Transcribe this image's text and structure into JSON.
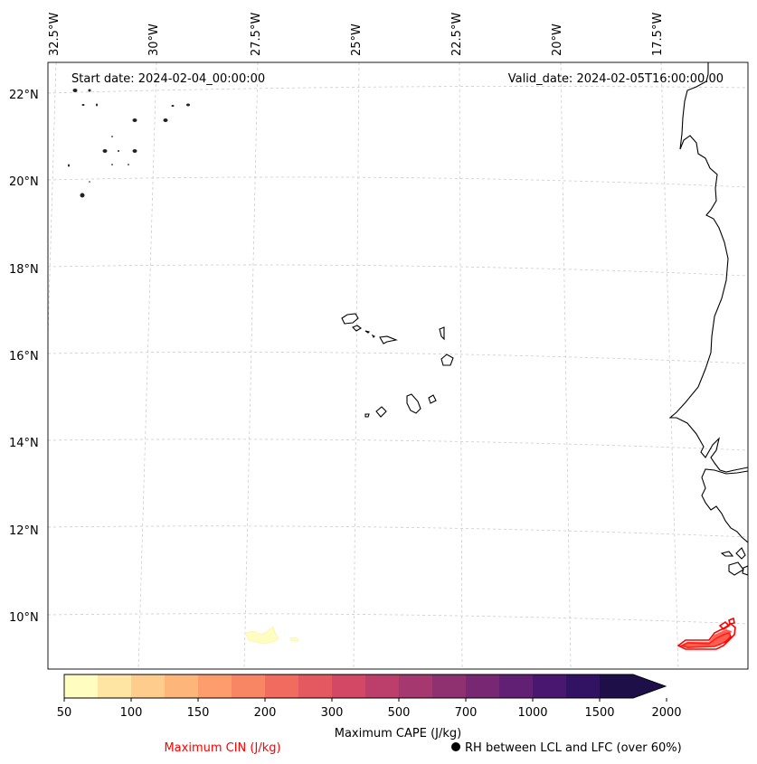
{
  "map": {
    "start_date_label": "Start date: 2024-02-04_00:00:00",
    "valid_date_label": "Valid_date: 2024-02-05T16:00:00.00",
    "lon_labels": [
      "32.5°W",
      "30°W",
      "27.5°W",
      "25°W",
      "22.5°W",
      "20°W",
      "17.5°W"
    ],
    "lat_labels": [
      "22°N",
      "20°N",
      "18°N",
      "16°N",
      "14°N",
      "12°N",
      "10°N"
    ]
  },
  "colorbar": {
    "label": "Maximum CAPE (J/kg)",
    "tick_labels": [
      "50",
      "100",
      "150",
      "200",
      "300",
      "500",
      "700",
      "1000",
      "1500",
      "2000"
    ],
    "colors": [
      "#fffdbf",
      "#fee5a3",
      "#fecd8d",
      "#feb57a",
      "#fd9d6d",
      "#f88563",
      "#f16c5e",
      "#e4585f",
      "#d24865",
      "#bc3f6b",
      "#a5386f",
      "#8f3071",
      "#782873",
      "#612073",
      "#4a1770",
      "#311263",
      "#1e0f49"
    ]
  },
  "legend": {
    "cin_label": "Maximum CIN (J/kg)",
    "rh_label": "RH between LCL and LFC (over 60%)",
    "cin_color": "#ff0000"
  },
  "chart_data": {
    "type": "map",
    "projection": "conic",
    "extent": {
      "lon_min": -33.0,
      "lon_max": -15.3,
      "lat_min": 9.0,
      "lat_max": 22.8
    },
    "gridlines": {
      "longitudes": [
        -32.5,
        -30,
        -27.5,
        -25,
        -22.5,
        -20,
        -17.5
      ],
      "latitudes": [
        22,
        20,
        18,
        16,
        14,
        12,
        10
      ],
      "style": "dashed"
    },
    "fields": [
      "Maximum CAPE (J/kg)",
      "Maximum CIN (J/kg)",
      "RH between LCL and LFC (over 60%)"
    ],
    "cape_levels": [
      50,
      100,
      150,
      200,
      300,
      500,
      700,
      1000,
      1500,
      2000
    ],
    "colorbar_extend": "max",
    "features": [
      "Cabo Verde islands",
      "West African coastline",
      "low CAPE patch near 27°W 9.5°N",
      "CIN contours near 16°W 9.5°N"
    ]
  }
}
